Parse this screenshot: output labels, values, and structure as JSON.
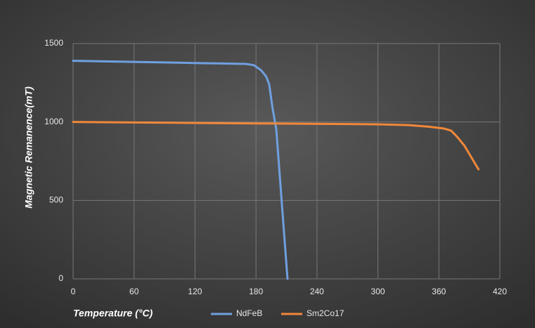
{
  "chart_data": {
    "type": "line",
    "x_label": "Temperature (°C)",
    "y_label": "Magnetic Remanence(mT)",
    "xlim": [
      0,
      420
    ],
    "xticks": [
      0,
      60,
      120,
      180,
      240,
      300,
      360,
      420
    ],
    "ylim": [
      0,
      1500
    ],
    "yticks": [
      0,
      500,
      1000,
      1500
    ],
    "grid": true,
    "legend": "bottom",
    "series": [
      {
        "name": "NdFeB",
        "color": "#6fa0e0",
        "x": [
          0,
          60,
          120,
          170,
          178,
          185,
          190,
          193,
          196,
          200,
          211
        ],
        "values": [
          1390,
          1383,
          1376,
          1370,
          1362,
          1330,
          1290,
          1240,
          1100,
          950,
          0
        ]
      },
      {
        "name": "Sm2Co17",
        "color": "#f0883a",
        "x": [
          0,
          100,
          200,
          300,
          330,
          350,
          365,
          372,
          378,
          385,
          399
        ],
        "values": [
          1000,
          995,
          990,
          985,
          980,
          970,
          958,
          945,
          905,
          850,
          698
        ]
      }
    ]
  }
}
